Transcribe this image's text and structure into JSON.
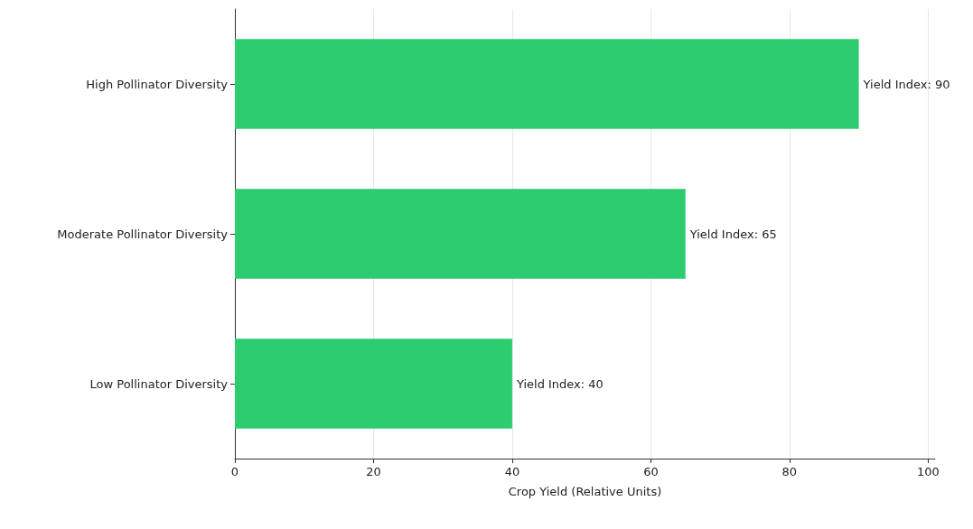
{
  "chart_data": {
    "type": "bar",
    "orientation": "horizontal",
    "categories": [
      "High Pollinator Diversity",
      "Moderate Pollinator Diversity",
      "Low Pollinator Diversity"
    ],
    "values": [
      90,
      65,
      40
    ],
    "color": "#2ecc71",
    "value_labels": [
      "Yield Index: 90",
      "Yield Index: 65",
      "Yield Index: 40"
    ],
    "xlabel": "Crop Yield (Relative Units)",
    "xlim": [
      0,
      101
    ],
    "xticks": [
      0,
      20,
      40,
      60,
      80,
      100
    ],
    "grid": "x"
  }
}
